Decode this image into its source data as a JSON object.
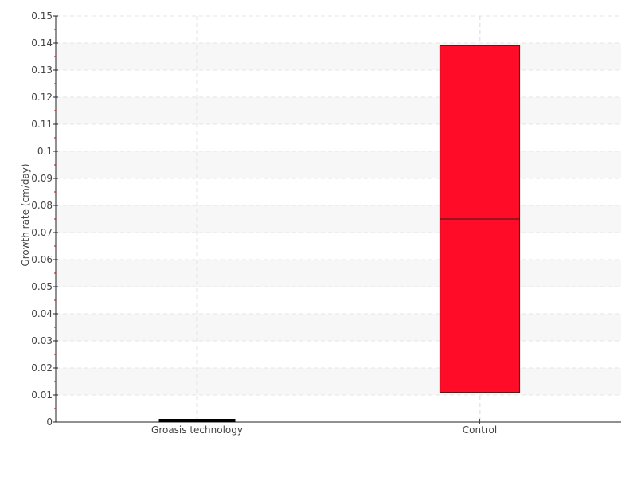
{
  "chart_data": {
    "type": "box",
    "ylabel": "Growth rate (cm/day)",
    "xlabel": "",
    "ylim": [
      0,
      0.15
    ],
    "yticks": [
      "0",
      "0.01",
      "0.02",
      "0.03",
      "0.04",
      "0.05",
      "0.06",
      "0.07",
      "0.08",
      "0.09",
      "0.1",
      "0.11",
      "0.12",
      "0.13",
      "0.14",
      "0.15"
    ],
    "grid": true,
    "categories": [
      "Groasis technology",
      "Control"
    ],
    "boxes": [
      {
        "category": "Groasis technology",
        "q1": 0,
        "median": 0,
        "q3": 0,
        "color": "#000000"
      },
      {
        "category": "Control",
        "q1": 0.011,
        "median": 0.075,
        "q3": 0.139,
        "color": "#ff0d28"
      }
    ]
  }
}
